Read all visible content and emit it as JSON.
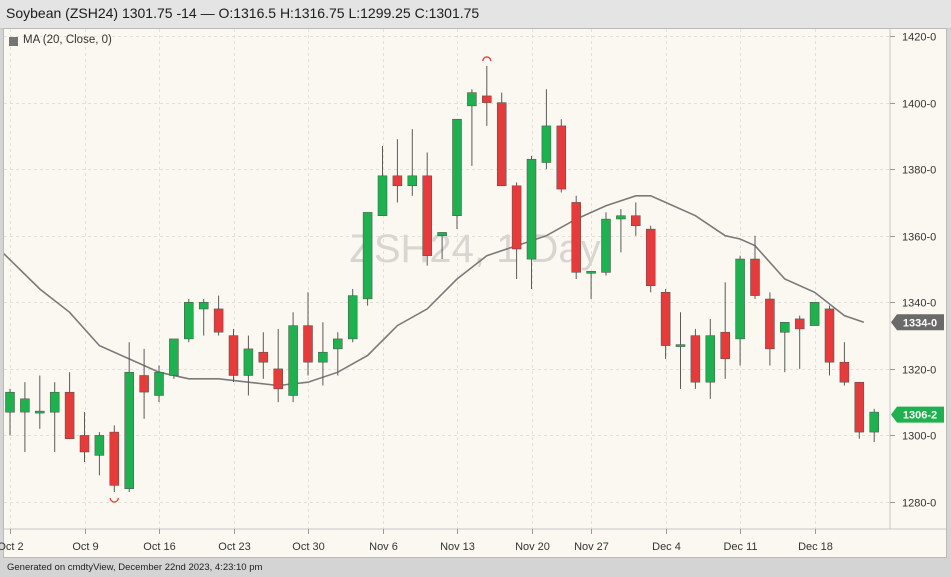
{
  "header": {
    "title": "Soybean (ZSH24) 1301.75 -14 — O:1316.5 H:1316.75 L:1299.25 C:1301.75"
  },
  "legend": {
    "label": "MA (20, Close, 0)"
  },
  "watermark": "ZSH24, 1 Day",
  "footer": {
    "text": "Generated on cmdtyView, December 22nd 2023, 4:23:10 pm"
  },
  "colors": {
    "up": "#1fb14f",
    "down": "#e63b3b",
    "ma": "#7a7a7a",
    "background": "#fbf8f1"
  },
  "chart_data": {
    "type": "candlestick",
    "symbol": "ZSH24",
    "interval": "1 Day",
    "ylim": [
      1272,
      1424
    ],
    "y_ticks": [
      "1420-0",
      "1400-0",
      "1380-0",
      "1360-0",
      "1340-0",
      "1320-0",
      "1300-0",
      "1280-0"
    ],
    "y_tick_values": [
      1420,
      1400,
      1380,
      1360,
      1340,
      1320,
      1300,
      1280
    ],
    "x_labels": [
      "Oct 2",
      "Oct 9",
      "Oct 16",
      "Oct 23",
      "Oct 30",
      "Nov 6",
      "Nov 13",
      "Nov 20",
      "Nov 27",
      "Dec 4",
      "Dec 11",
      "Dec 18"
    ],
    "x_label_index": [
      0,
      5,
      10,
      15,
      20,
      25,
      30,
      35,
      39,
      44,
      49,
      54
    ],
    "last_price_badges": [
      {
        "label": "1334-0",
        "value": 1334,
        "style": "ma"
      },
      {
        "label": "1306-2",
        "value": 1306.25,
        "style": "up"
      }
    ],
    "high_low_markers": [
      {
        "type": "low",
        "index": 7,
        "value": 1283
      },
      {
        "type": "high",
        "index": 32,
        "value": 1411
      }
    ],
    "candles": [
      {
        "o": 1307,
        "h": 1314,
        "l": 1300,
        "c": 1313
      },
      {
        "o": 1307,
        "h": 1316,
        "l": 1295,
        "c": 1311
      },
      {
        "o": 1307,
        "h": 1318,
        "l": 1302,
        "c": 1307
      },
      {
        "o": 1307,
        "h": 1316,
        "l": 1295,
        "c": 1313
      },
      {
        "o": 1313,
        "h": 1319,
        "l": 1299,
        "c": 1299
      },
      {
        "o": 1300,
        "h": 1307,
        "l": 1292,
        "c": 1295
      },
      {
        "o": 1294,
        "h": 1301,
        "l": 1288,
        "c": 1300
      },
      {
        "o": 1301,
        "h": 1303,
        "l": 1283,
        "c": 1285
      },
      {
        "o": 1284,
        "h": 1328,
        "l": 1283,
        "c": 1319
      },
      {
        "o": 1318,
        "h": 1326,
        "l": 1305,
        "c": 1313
      },
      {
        "o": 1312,
        "h": 1321,
        "l": 1310,
        "c": 1319
      },
      {
        "o": 1318,
        "h": 1329,
        "l": 1317,
        "c": 1329
      },
      {
        "o": 1329,
        "h": 1341,
        "l": 1328,
        "c": 1340
      },
      {
        "o": 1338,
        "h": 1341,
        "l": 1330,
        "c": 1340
      },
      {
        "o": 1338,
        "h": 1342,
        "l": 1330,
        "c": 1331
      },
      {
        "o": 1330,
        "h": 1332,
        "l": 1316,
        "c": 1318
      },
      {
        "o": 1318,
        "h": 1330,
        "l": 1312,
        "c": 1326
      },
      {
        "o": 1325,
        "h": 1331,
        "l": 1317,
        "c": 1322
      },
      {
        "o": 1320,
        "h": 1332,
        "l": 1310,
        "c": 1314
      },
      {
        "o": 1312,
        "h": 1337,
        "l": 1310,
        "c": 1333
      },
      {
        "o": 1333,
        "h": 1343,
        "l": 1318,
        "c": 1322
      },
      {
        "o": 1322,
        "h": 1334,
        "l": 1315,
        "c": 1325
      },
      {
        "o": 1326,
        "h": 1331,
        "l": 1318,
        "c": 1329
      },
      {
        "o": 1329,
        "h": 1344,
        "l": 1328,
        "c": 1342
      },
      {
        "o": 1341,
        "h": 1367,
        "l": 1339,
        "c": 1367
      },
      {
        "o": 1366,
        "h": 1387,
        "l": 1366,
        "c": 1378
      },
      {
        "o": 1378,
        "h": 1389,
        "l": 1370,
        "c": 1375
      },
      {
        "o": 1375,
        "h": 1392,
        "l": 1372,
        "c": 1378
      },
      {
        "o": 1378,
        "h": 1385,
        "l": 1351,
        "c": 1354
      },
      {
        "o": 1360,
        "h": 1361,
        "l": 1353,
        "c": 1361
      },
      {
        "o": 1366,
        "h": 1395,
        "l": 1362,
        "c": 1395
      },
      {
        "o": 1399,
        "h": 1404,
        "l": 1381,
        "c": 1403
      },
      {
        "o": 1402,
        "h": 1411,
        "l": 1393,
        "c": 1400
      },
      {
        "o": 1400,
        "h": 1403,
        "l": 1375,
        "c": 1375
      },
      {
        "o": 1375,
        "h": 1376,
        "l": 1347,
        "c": 1356
      },
      {
        "o": 1353,
        "h": 1384,
        "l": 1344,
        "c": 1383
      },
      {
        "o": 1382,
        "h": 1404,
        "l": 1380,
        "c": 1393
      },
      {
        "o": 1393,
        "h": 1395,
        "l": 1373,
        "c": 1374
      },
      {
        "o": 1370,
        "h": 1372,
        "l": 1347,
        "c": 1349
      },
      {
        "o": 1349,
        "h": 1349,
        "l": 1341,
        "c": 1349
      },
      {
        "o": 1349,
        "h": 1367,
        "l": 1348,
        "c": 1365
      },
      {
        "o": 1365,
        "h": 1368,
        "l": 1355,
        "c": 1366
      },
      {
        "o": 1366,
        "h": 1370,
        "l": 1360,
        "c": 1363
      },
      {
        "o": 1362,
        "h": 1363,
        "l": 1343,
        "c": 1345
      },
      {
        "o": 1343,
        "h": 1344,
        "l": 1323,
        "c": 1327
      },
      {
        "o": 1327,
        "h": 1337,
        "l": 1314,
        "c": 1327
      },
      {
        "o": 1330,
        "h": 1332,
        "l": 1314,
        "c": 1316
      },
      {
        "o": 1316,
        "h": 1335,
        "l": 1311,
        "c": 1330
      },
      {
        "o": 1331,
        "h": 1346,
        "l": 1317,
        "c": 1323
      },
      {
        "o": 1329,
        "h": 1354,
        "l": 1321,
        "c": 1353
      },
      {
        "o": 1353,
        "h": 1360,
        "l": 1341,
        "c": 1342
      },
      {
        "o": 1341,
        "h": 1343,
        "l": 1321,
        "c": 1326
      },
      {
        "o": 1331,
        "h": 1334,
        "l": 1319,
        "c": 1334
      },
      {
        "o": 1335,
        "h": 1336,
        "l": 1320,
        "c": 1332
      },
      {
        "o": 1333,
        "h": 1340,
        "l": 1333,
        "c": 1340
      },
      {
        "o": 1338,
        "h": 1339,
        "l": 1318,
        "c": 1322
      },
      {
        "o": 1322,
        "h": 1328,
        "l": 1315,
        "c": 1316
      },
      {
        "o": 1316,
        "h": 1316,
        "l": 1299,
        "c": 1301
      },
      {
        "o": 1301,
        "h": 1308,
        "l": 1298,
        "c": 1307
      }
    ],
    "ma_line": [
      {
        "i": -0.5,
        "v": 1355
      },
      {
        "i": 2.0,
        "v": 1344
      },
      {
        "i": 4.0,
        "v": 1337
      },
      {
        "i": 6.0,
        "v": 1327
      },
      {
        "i": 8.0,
        "v": 1323
      },
      {
        "i": 10.0,
        "v": 1319
      },
      {
        "i": 12.0,
        "v": 1317
      },
      {
        "i": 14.0,
        "v": 1317
      },
      {
        "i": 16.0,
        "v": 1316
      },
      {
        "i": 18.0,
        "v": 1315
      },
      {
        "i": 20.0,
        "v": 1316
      },
      {
        "i": 22.0,
        "v": 1319
      },
      {
        "i": 24.0,
        "v": 1324
      },
      {
        "i": 26.0,
        "v": 1333
      },
      {
        "i": 28.0,
        "v": 1338
      },
      {
        "i": 30.0,
        "v": 1347
      },
      {
        "i": 32.0,
        "v": 1354
      },
      {
        "i": 34.0,
        "v": 1357
      },
      {
        "i": 36.0,
        "v": 1360
      },
      {
        "i": 38.0,
        "v": 1365
      },
      {
        "i": 40.0,
        "v": 1369
      },
      {
        "i": 42.0,
        "v": 1372
      },
      {
        "i": 43.0,
        "v": 1372
      },
      {
        "i": 44.0,
        "v": 1370
      },
      {
        "i": 46.0,
        "v": 1366
      },
      {
        "i": 48.0,
        "v": 1360
      },
      {
        "i": 49.0,
        "v": 1359
      },
      {
        "i": 50.0,
        "v": 1357
      },
      {
        "i": 52.0,
        "v": 1347
      },
      {
        "i": 54.0,
        "v": 1343
      },
      {
        "i": 56.0,
        "v": 1336
      },
      {
        "i": 57.3,
        "v": 1334
      }
    ]
  }
}
